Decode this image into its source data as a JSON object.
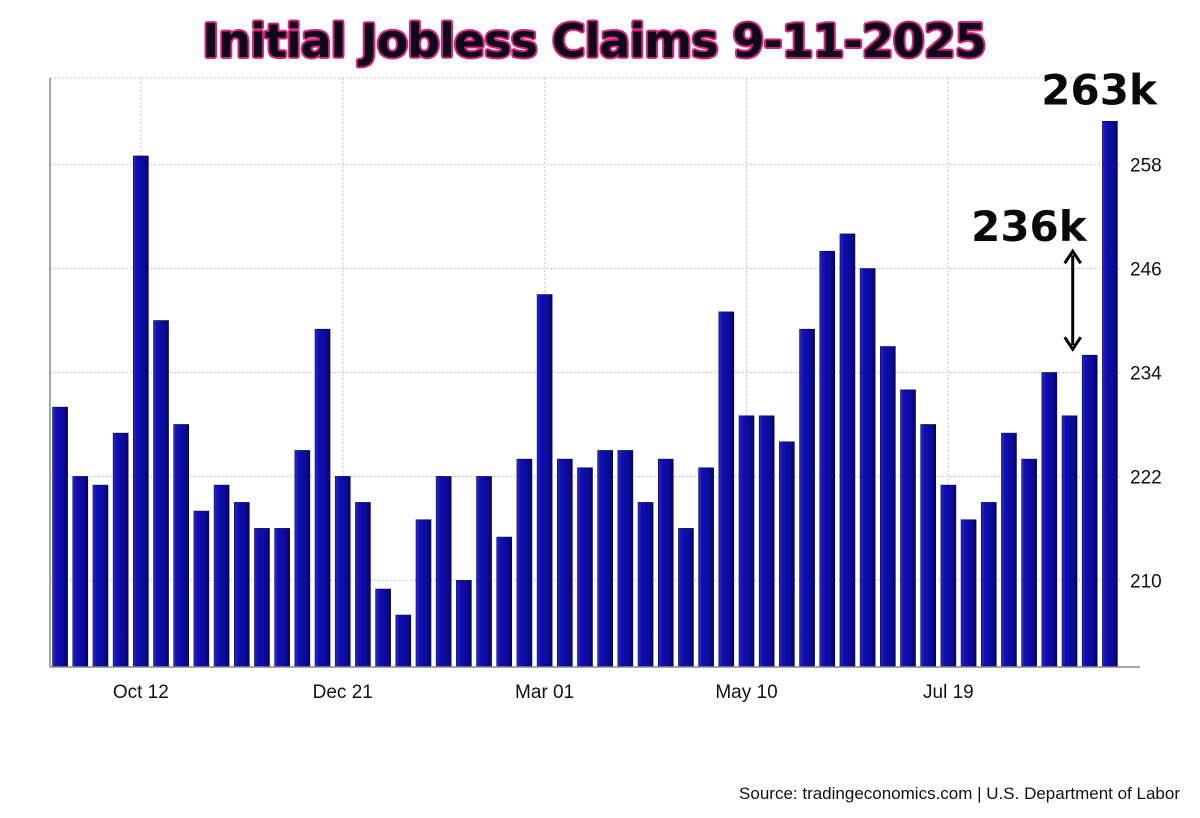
{
  "chart_data": {
    "type": "bar",
    "title": "Initial Jobless Claims 9-11-2025",
    "xlabel": "",
    "ylabel": "",
    "ylim": [
      200,
      268
    ],
    "y_ticks": [
      210,
      222,
      234,
      246,
      258
    ],
    "x_tick_labels": [
      {
        "label": "Oct 12",
        "index": 4
      },
      {
        "label": "Dec 21",
        "index": 14
      },
      {
        "label": "Mar 01",
        "index": 24
      },
      {
        "label": "May 10",
        "index": 34
      },
      {
        "label": "Jul 19",
        "index": 44
      }
    ],
    "values": [
      230,
      222,
      221,
      227,
      259,
      240,
      228,
      218,
      221,
      219,
      216,
      216,
      225,
      239,
      222,
      219,
      209,
      206,
      217,
      222,
      210,
      222,
      215,
      224,
      243,
      224,
      223,
      225,
      225,
      219,
      224,
      216,
      223,
      241,
      229,
      229,
      226,
      239,
      248,
      250,
      246,
      237,
      232,
      228,
      221,
      217,
      219,
      227,
      224,
      234,
      229,
      236,
      263
    ],
    "bar_color": "#0b0a96",
    "grid": true,
    "annotations": [
      {
        "text": "263k",
        "index": 52,
        "value": 263
      },
      {
        "text": "236k",
        "index": 51,
        "value": 236,
        "arrow_to": 248
      }
    ]
  },
  "source": "Source: tradingeconomics.com | U.S. Department of Labor"
}
